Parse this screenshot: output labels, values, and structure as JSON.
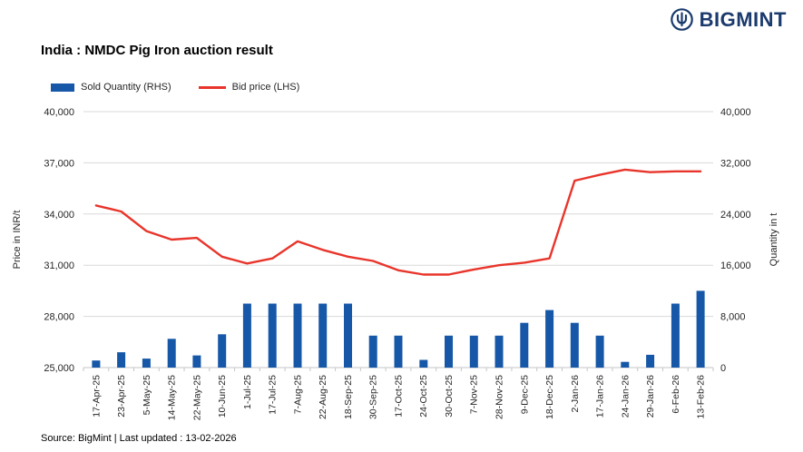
{
  "logo": {
    "text": "BIGMINT",
    "color": "#1b3a6d"
  },
  "title": "India : NMDC Pig Iron auction result",
  "legend": [
    {
      "label": "Sold Quantity (RHS)",
      "type": "bar",
      "color": "#1657a8"
    },
    {
      "label": "Bid price (LHS)",
      "type": "line",
      "color": "#e8352b"
    }
  ],
  "footer": "Source: BigMint | Last updated : 13-02-2026",
  "chart_data": {
    "type": "bar+line",
    "categories": [
      "17-Apr-25",
      "23-Apr-25",
      "5-May-25",
      "14-May-25",
      "22-May-25",
      "10-Jun-25",
      "1-Jul-25",
      "17-Jul-25",
      "7-Aug-25",
      "22-Aug-25",
      "18-Sep-25",
      "30-Sep-25",
      "17-Oct-25",
      "24-Oct-25",
      "30-Oct-25",
      "7-Nov-25",
      "28-Nov-25",
      "9-Dec-25",
      "18-Dec-25",
      "2-Jan-26",
      "17-Jan-26",
      "24-Jan-26",
      "29-Jan-26",
      "6-Feb-26",
      "13-Feb-26"
    ],
    "series": [
      {
        "name": "Sold Quantity (RHS)",
        "type": "bar",
        "axis": "right",
        "color": "#1657a8",
        "values": [
          1100,
          2400,
          1400,
          4500,
          1900,
          5200,
          10000,
          10000,
          10000,
          10000,
          10000,
          5000,
          5000,
          1200,
          5000,
          5000,
          5000,
          7000,
          9000,
          7000,
          5000,
          900,
          2000,
          10000,
          12000
        ]
      },
      {
        "name": "Bid price (LHS)",
        "type": "line",
        "axis": "left",
        "color": "#e8352b",
        "values": [
          34500,
          34150,
          33000,
          32500,
          32600,
          31500,
          31100,
          31400,
          32400,
          31900,
          31500,
          31250,
          30700,
          30450,
          30450,
          30750,
          31000,
          31150,
          31400,
          35950,
          36300,
          36600,
          36450,
          36500,
          36500
        ]
      }
    ],
    "left_axis": {
      "label": "Price in INR/t",
      "min": 25000,
      "max": 40000,
      "ticks": [
        25000,
        28000,
        31000,
        34000,
        37000,
        40000
      ]
    },
    "right_axis": {
      "label": "Quantity in t",
      "min": 0,
      "max": 40000,
      "ticks": [
        0,
        8000,
        16000,
        24000,
        32000,
        40000
      ]
    },
    "grid": true,
    "legend_position": "top-left"
  }
}
